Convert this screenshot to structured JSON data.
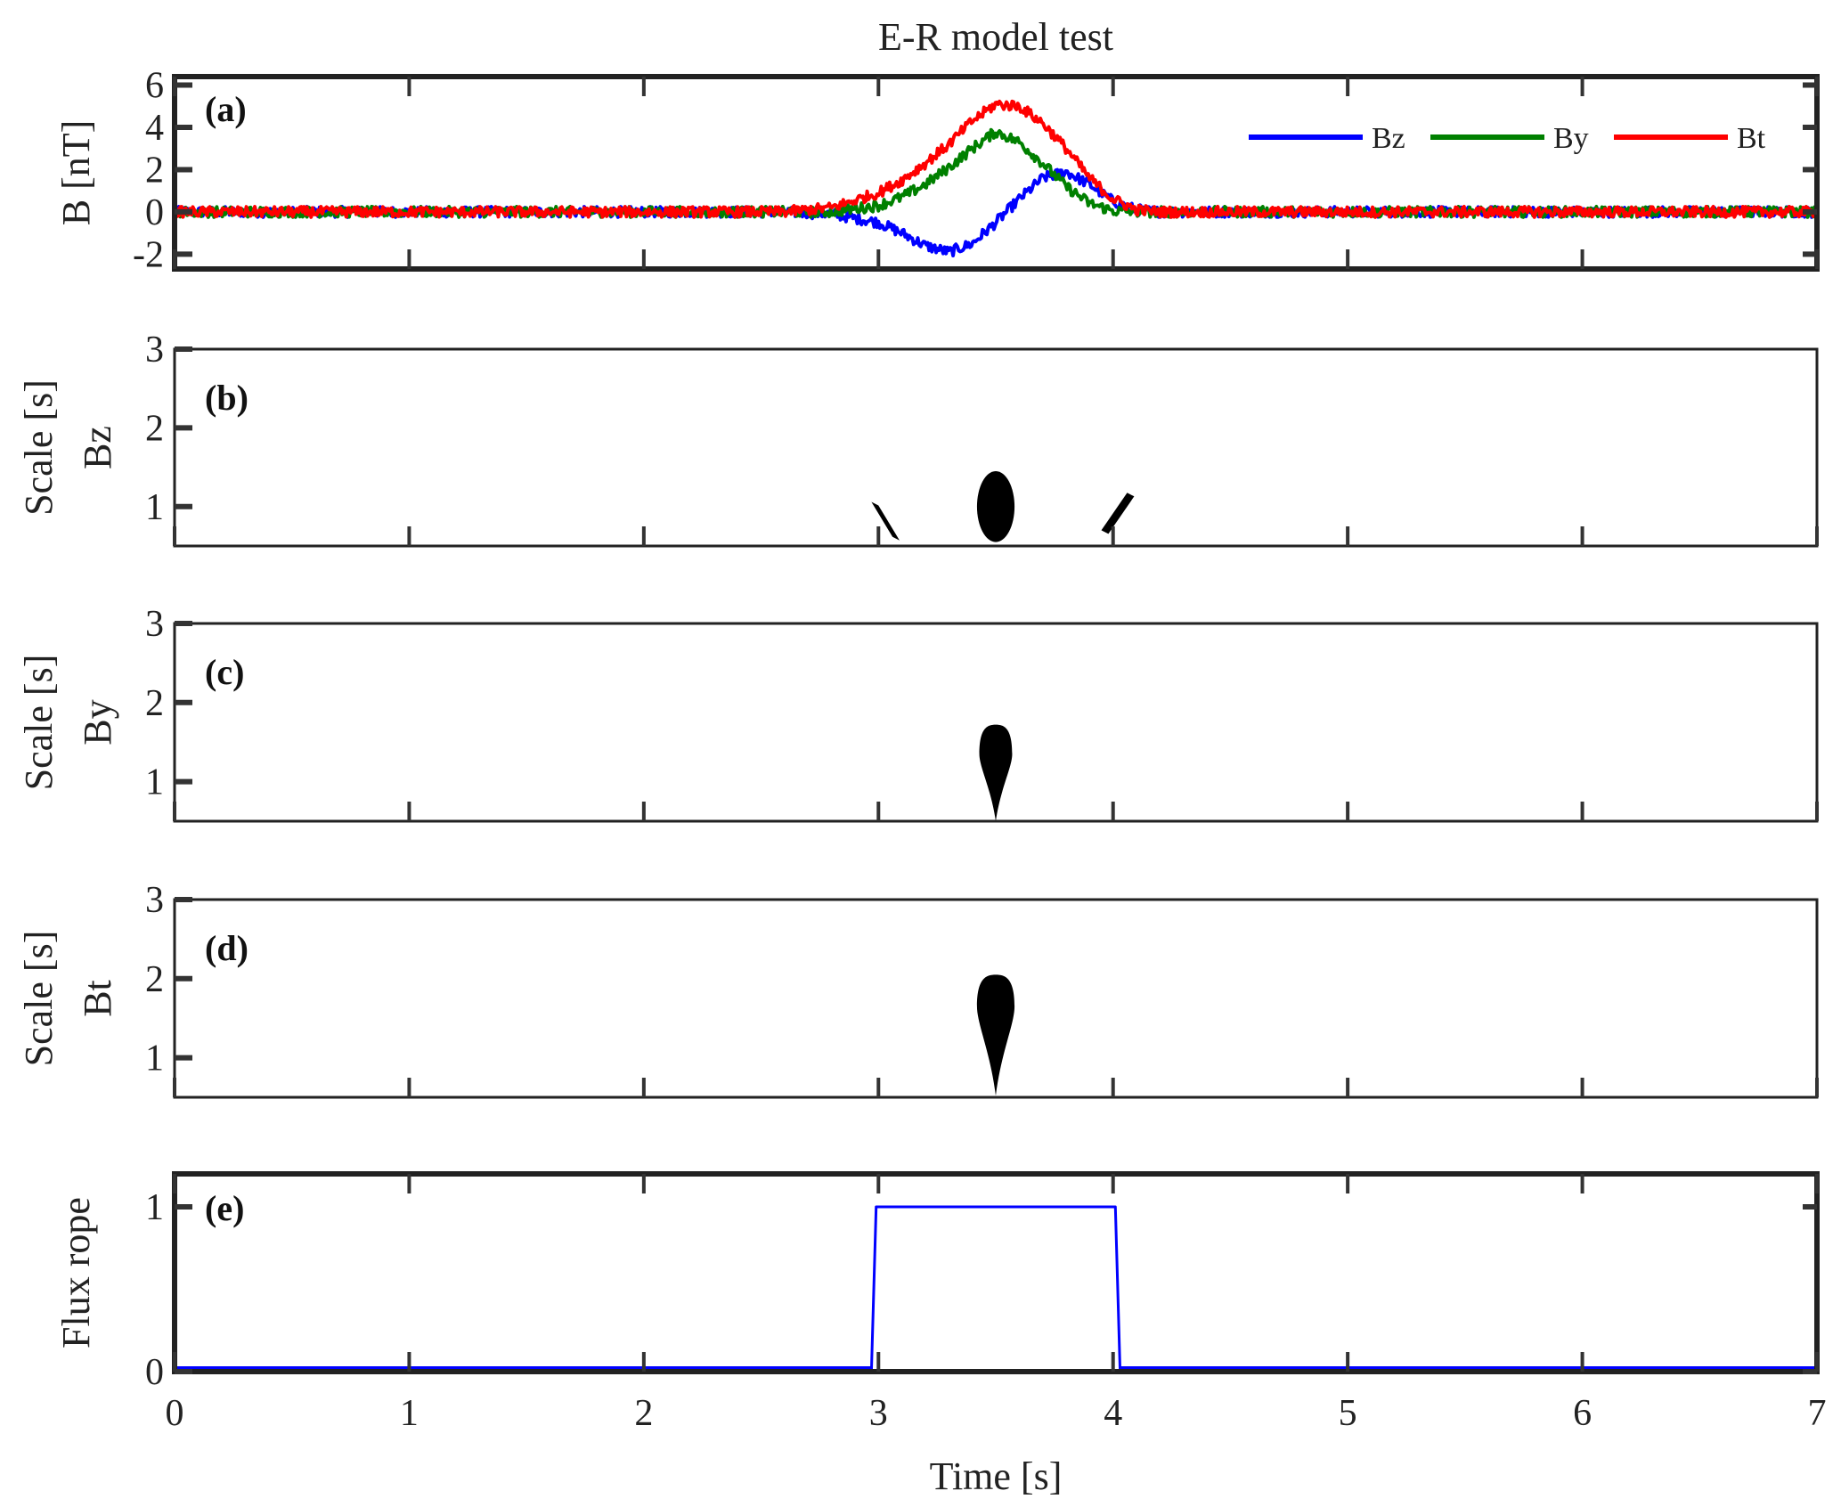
{
  "chart_data": {
    "title": "E-R model test",
    "xlabel": "Time [s]",
    "xlim": [
      0,
      7
    ],
    "xticks": [
      0,
      1,
      2,
      3,
      4,
      5,
      6,
      7
    ],
    "xtick_labels": [
      "0",
      "1",
      "2",
      "3",
      "4",
      "5",
      "6",
      "7"
    ],
    "panels": [
      {
        "id": "a",
        "label": "(a)",
        "type": "line",
        "ylabel": [
          "B [nT]"
        ],
        "ylim": [
          -2.7,
          6.4
        ],
        "yticks": [
          -2,
          0,
          2,
          4,
          6
        ],
        "ytick_labels": [
          "-2",
          "0",
          "2",
          "4",
          "6"
        ],
        "legend": {
          "placement": "top-right",
          "entries": [
            "Bz",
            "By",
            "Bt"
          ]
        },
        "noise_amplitude": 0.25,
        "x": [
          0,
          2.6,
          2.8,
          3.0,
          3.1,
          3.2,
          3.3,
          3.4,
          3.5,
          3.6,
          3.7,
          3.8,
          3.9,
          4.0,
          4.1,
          4.2,
          4.4,
          7
        ],
        "series": [
          {
            "name": "Bz",
            "color": "#0000ff",
            "values": [
              0,
              0,
              -0.1,
              -0.5,
              -1.0,
              -1.6,
              -1.9,
              -1.5,
              -0.5,
              0.6,
              1.6,
              1.9,
              1.3,
              0.5,
              0.1,
              0,
              0,
              0
            ]
          },
          {
            "name": "By",
            "color": "#008000",
            "values": [
              0,
              0,
              0,
              0.3,
              0.7,
              1.3,
              2.1,
              3.0,
              3.8,
              3.3,
              2.3,
              1.2,
              0.4,
              0.05,
              0,
              0,
              0,
              0
            ]
          },
          {
            "name": "Bt",
            "color": "#ff0000",
            "values": [
              0,
              0,
              0.2,
              0.9,
              1.5,
              2.3,
              3.2,
              4.3,
              5.1,
              5.0,
              4.2,
              3.0,
              1.6,
              0.6,
              0.1,
              0,
              0,
              0
            ]
          }
        ]
      },
      {
        "id": "b",
        "label": "(b)",
        "type": "scalogram",
        "ylabel": [
          "Scale [s]",
          "Bz"
        ],
        "ylim": [
          0.5,
          3
        ],
        "yticks": [
          1,
          2,
          3
        ],
        "ytick_labels": [
          "1",
          "2",
          "3"
        ],
        "regions": [
          {
            "shape": "ellipse",
            "t": 3.5,
            "s_min": 0.55,
            "s_max": 1.45,
            "half_width": 0.08
          },
          {
            "shape": "streak",
            "t0": 2.97,
            "s0": 1.06,
            "t1": 3.09,
            "s1": 0.57,
            "half_width": 0.015
          },
          {
            "shape": "streak",
            "t0": 3.95,
            "s0": 0.7,
            "t1": 4.09,
            "s1": 1.13,
            "half_width": 0.015
          }
        ]
      },
      {
        "id": "c",
        "label": "(c)",
        "type": "scalogram",
        "ylabel": [
          "Scale [s]",
          "By"
        ],
        "ylim": [
          0.5,
          3
        ],
        "yticks": [
          1,
          2,
          3
        ],
        "ytick_labels": [
          "1",
          "2",
          "3"
        ],
        "regions": [
          {
            "shape": "teardrop",
            "t": 3.5,
            "s_min": 0.5,
            "s_max": 1.72,
            "s_widest": 1.35,
            "half_width": 0.07
          }
        ]
      },
      {
        "id": "d",
        "label": "(d)",
        "type": "scalogram",
        "ylabel": [
          "Scale [s]",
          "Bt"
        ],
        "ylim": [
          0.5,
          3
        ],
        "yticks": [
          1,
          2,
          3
        ],
        "ytick_labels": [
          "1",
          "2",
          "3"
        ],
        "regions": [
          {
            "shape": "teardrop",
            "t": 3.5,
            "s_min": 0.52,
            "s_max": 2.05,
            "s_widest": 1.65,
            "half_width": 0.08
          }
        ]
      },
      {
        "id": "e",
        "label": "(e)",
        "type": "line",
        "ylabel": [
          "Flux rope"
        ],
        "ylim": [
          0,
          1.2
        ],
        "yticks": [
          0,
          1
        ],
        "ytick_labels": [
          "0",
          "1"
        ],
        "x": [
          0,
          2.97,
          2.99,
          4.01,
          4.03,
          7
        ],
        "series": [
          {
            "name": "Flux rope",
            "color": "#0000ff",
            "values": [
              0,
              0,
              1,
              1,
              0,
              0
            ]
          }
        ]
      }
    ]
  }
}
